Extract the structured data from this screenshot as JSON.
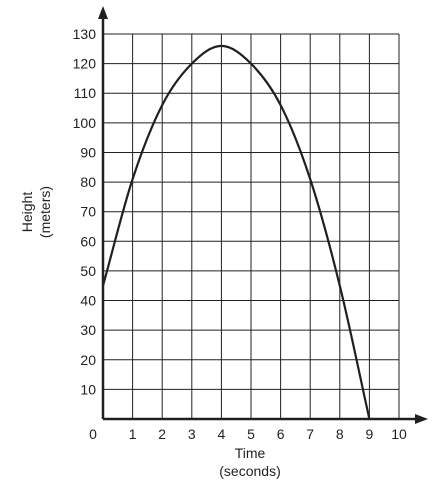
{
  "chart_data": {
    "type": "line",
    "title": "",
    "xlabel": "Time",
    "xlabel_unit": "(seconds)",
    "ylabel": "Height",
    "ylabel_unit": "(meters)",
    "xlim": [
      0,
      10
    ],
    "ylim": [
      0,
      130
    ],
    "x_ticks": [
      0,
      1,
      2,
      3,
      4,
      5,
      6,
      7,
      8,
      9,
      10
    ],
    "y_ticks": [
      10,
      20,
      30,
      40,
      50,
      60,
      70,
      80,
      90,
      100,
      110,
      120,
      130
    ],
    "grid": true,
    "line_color": "#231f20",
    "series": [
      {
        "x": [
          0,
          1,
          2,
          3,
          4,
          5,
          6,
          7,
          8,
          9
        ],
        "y": [
          45,
          81,
          106,
          120,
          126,
          120,
          106,
          81,
          45,
          0
        ]
      }
    ]
  }
}
